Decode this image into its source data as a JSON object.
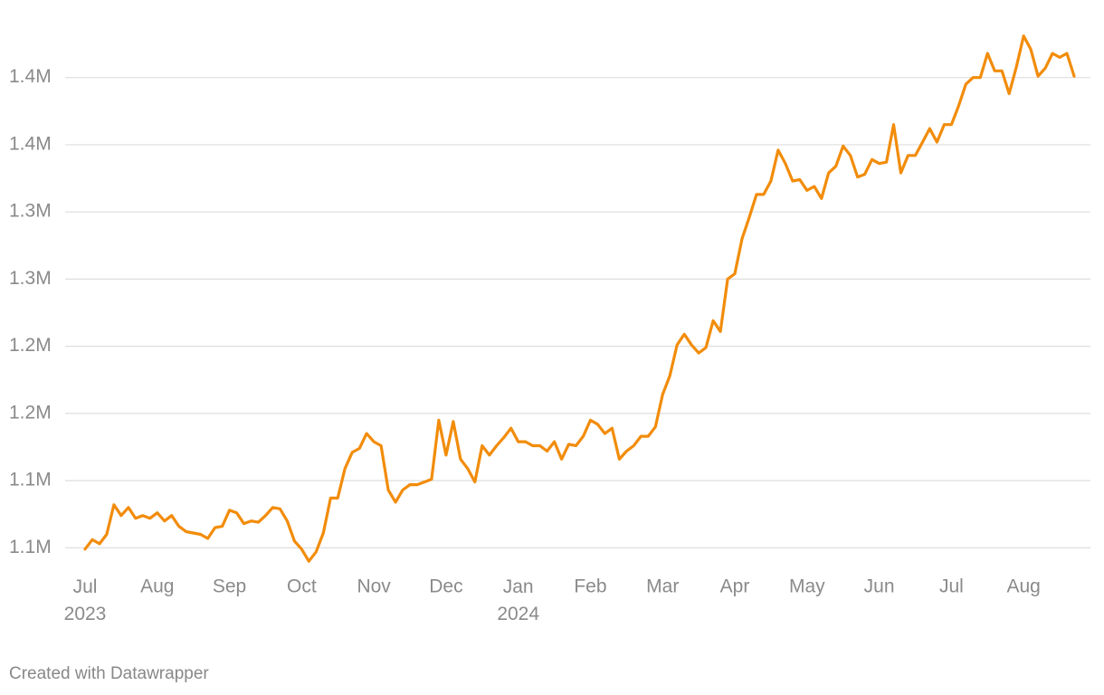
{
  "chart_data": {
    "type": "line",
    "footer": "Created with Datawrapper",
    "categories": [
      "Jul 2023",
      null,
      null,
      null,
      null,
      null,
      null,
      null,
      null,
      null,
      "Aug",
      null,
      null,
      null,
      null,
      null,
      null,
      null,
      null,
      null,
      "Sep",
      null,
      null,
      null,
      null,
      null,
      null,
      null,
      null,
      null,
      "Oct",
      null,
      null,
      null,
      null,
      null,
      null,
      null,
      null,
      null,
      "Nov",
      null,
      null,
      null,
      null,
      null,
      null,
      null,
      null,
      null,
      "Dec",
      null,
      null,
      null,
      null,
      null,
      null,
      null,
      null,
      null,
      "Jan 2024",
      null,
      null,
      null,
      null,
      null,
      null,
      null,
      null,
      null,
      "Feb",
      null,
      null,
      null,
      null,
      null,
      null,
      null,
      null,
      null,
      "Mar",
      null,
      null,
      null,
      null,
      null,
      null,
      null,
      null,
      null,
      "Apr",
      null,
      null,
      null,
      null,
      null,
      null,
      null,
      null,
      null,
      "May",
      null,
      null,
      null,
      null,
      null,
      null,
      null,
      null,
      null,
      "Jun",
      null,
      null,
      null,
      null,
      null,
      null,
      null,
      null,
      null,
      "Jul",
      null,
      null,
      null,
      null,
      null,
      null,
      null,
      null,
      null,
      "Aug",
      null,
      null,
      null,
      null,
      null,
      null,
      null
    ],
    "values": [
      1049000,
      1056000,
      1053000,
      1060000,
      1082000,
      1074000,
      1080000,
      1072000,
      1074000,
      1072000,
      1076000,
      1070000,
      1074000,
      1066000,
      1062000,
      1061000,
      1060000,
      1057000,
      1065000,
      1066000,
      1078000,
      1076000,
      1068000,
      1070000,
      1069000,
      1074000,
      1080000,
      1079000,
      1070000,
      1055000,
      1049000,
      1040000,
      1047000,
      1061000,
      1087000,
      1087000,
      1109000,
      1121000,
      1124000,
      1135000,
      1129000,
      1126000,
      1093000,
      1084000,
      1093000,
      1097000,
      1097000,
      1099000,
      1101000,
      1145000,
      1119000,
      1144000,
      1116000,
      1109000,
      1099000,
      1126000,
      1119000,
      1126000,
      1132000,
      1139000,
      1129000,
      1129000,
      1126000,
      1126000,
      1122000,
      1129000,
      1116000,
      1127000,
      1126000,
      1133000,
      1145000,
      1142000,
      1135000,
      1139000,
      1116000,
      1122000,
      1126000,
      1133000,
      1133000,
      1140000,
      1164000,
      1178000,
      1201000,
      1209000,
      1201000,
      1195000,
      1199000,
      1219000,
      1211000,
      1250000,
      1254000,
      1280000,
      1296000,
      1313000,
      1313000,
      1323000,
      1346000,
      1336000,
      1323000,
      1324000,
      1316000,
      1319000,
      1310000,
      1329000,
      1334000,
      1349000,
      1342000,
      1326000,
      1328000,
      1339000,
      1336000,
      1337000,
      1365000,
      1329000,
      1342000,
      1342000,
      1352000,
      1362000,
      1352000,
      1365000,
      1365000,
      1379000,
      1395000,
      1400000,
      1400000,
      1418000,
      1405000,
      1405000,
      1388000,
      1408000,
      1431000,
      1421000,
      1401000,
      1407000,
      1418000,
      1415000,
      1418000,
      1401000
    ],
    "color": "#f28c0a",
    "ylim": [
      1040000,
      1440000
    ],
    "yticks": [
      {
        "value": 1050000,
        "label": "1.1M"
      },
      {
        "value": 1100000,
        "label": "1.1M"
      },
      {
        "value": 1150000,
        "label": "1.2M"
      },
      {
        "value": 1200000,
        "label": "1.2M"
      },
      {
        "value": 1250000,
        "label": "1.3M"
      },
      {
        "value": 1300000,
        "label": "1.3M"
      },
      {
        "value": 1350000,
        "label": "1.4M"
      },
      {
        "value": 1400000,
        "label": "1.4M"
      }
    ],
    "grid": true
  }
}
